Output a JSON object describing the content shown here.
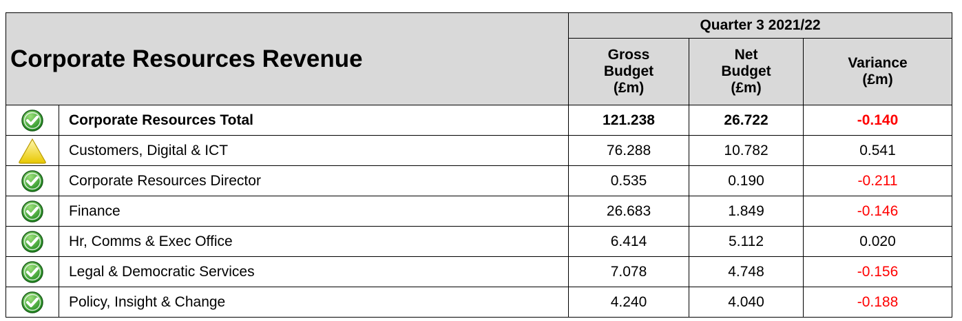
{
  "header": {
    "title": "Corporate Resources Revenue",
    "period": "Quarter 3 2021/22",
    "columns": [
      [
        "Gross",
        "Budget",
        "(£m)"
      ],
      [
        "Net",
        "Budget",
        "(£m)"
      ],
      [
        "Variance",
        "(£m)"
      ]
    ]
  },
  "table": {
    "rows": [
      {
        "status": "ok",
        "total": true,
        "name": "Corporate Resources Total",
        "cells": [
          "121.238",
          "26.722",
          "-0.140"
        ]
      },
      {
        "status": "warning",
        "name": "Customers, Digital & ICT",
        "cells": [
          "76.288",
          "10.782",
          "0.541"
        ]
      },
      {
        "status": "ok",
        "name": "Corporate Resources Director",
        "cells": [
          "0.535",
          "0.190",
          "-0.211"
        ]
      },
      {
        "status": "ok",
        "name": "Finance",
        "cells": [
          "26.683",
          "1.849",
          "-0.146"
        ]
      },
      {
        "status": "ok",
        "name": "Hr, Comms & Exec Office",
        "cells": [
          "6.414",
          "5.112",
          "0.020"
        ]
      },
      {
        "status": "ok",
        "name": "Legal & Democratic Services",
        "cells": [
          "7.078",
          "4.748",
          "-0.156"
        ]
      },
      {
        "status": "ok",
        "name": "Policy, Insight & Change",
        "cells": [
          "4.240",
          "4.040",
          "-0.188"
        ]
      }
    ]
  }
}
